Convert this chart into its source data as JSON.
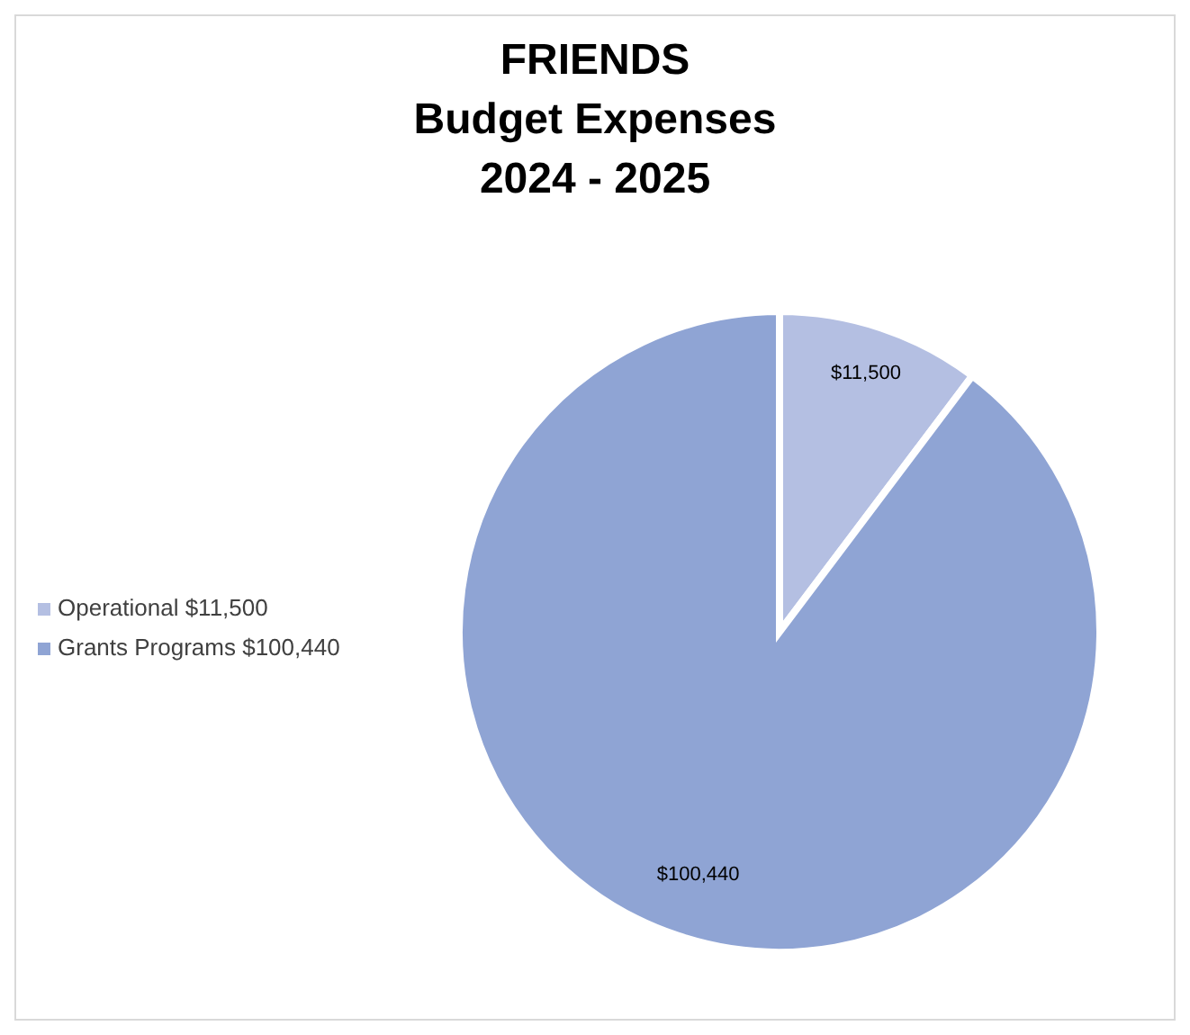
{
  "chart_data": {
    "type": "pie",
    "title": "FRIENDS\nBudget Expenses\n2024 - 2025",
    "categories": [
      "Operational $11,500",
      "Grants Programs $100,440"
    ],
    "values": [
      11500,
      100440
    ],
    "colors": [
      "#b4bfe2",
      "#8fa4d4"
    ],
    "value_labels": [
      "$11,500",
      "$100,440"
    ],
    "legend": "left"
  }
}
